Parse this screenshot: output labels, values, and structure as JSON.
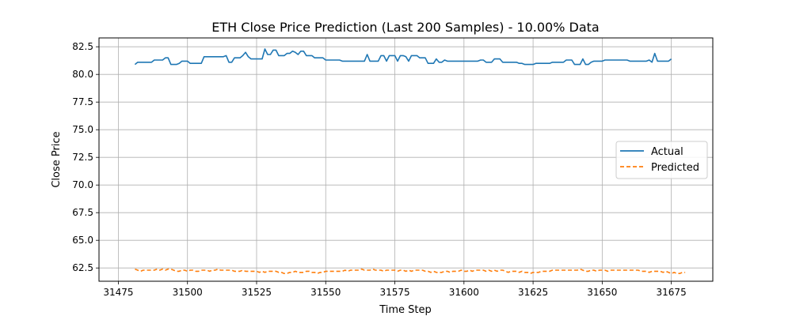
{
  "chart_data": {
    "type": "line",
    "title": "ETH Close Price Prediction (Last 200 Samples) - 10.00% Data",
    "xlabel": "Time Step",
    "ylabel": "Close Price",
    "xlim": [
      31468,
      31690
    ],
    "ylim": [
      61.3,
      83.3
    ],
    "x_ticks": [
      31475,
      31500,
      31525,
      31550,
      31575,
      31600,
      31625,
      31650,
      31675
    ],
    "y_ticks": [
      62.5,
      65.0,
      67.5,
      70.0,
      72.5,
      75.0,
      77.5,
      80.0,
      82.5
    ],
    "grid": true,
    "legend_position": "center-right",
    "x_start": 31481,
    "series": [
      {
        "name": "Actual",
        "color": "#1f77b4",
        "style": "solid",
        "values": [
          80.9,
          81.1,
          81.1,
          81.1,
          81.1,
          81.1,
          81.1,
          81.3,
          81.3,
          81.3,
          81.3,
          81.5,
          81.5,
          80.9,
          80.9,
          80.9,
          81.0,
          81.2,
          81.2,
          81.2,
          81.0,
          81.0,
          81.0,
          81.0,
          81.0,
          81.6,
          81.6,
          81.6,
          81.6,
          81.6,
          81.6,
          81.6,
          81.6,
          81.7,
          81.1,
          81.1,
          81.5,
          81.5,
          81.5,
          81.7,
          82.0,
          81.6,
          81.4,
          81.4,
          81.4,
          81.4,
          81.4,
          82.3,
          81.8,
          81.8,
          82.2,
          82.2,
          81.7,
          81.7,
          81.7,
          81.9,
          81.9,
          82.1,
          82.0,
          81.8,
          82.1,
          82.1,
          81.7,
          81.7,
          81.7,
          81.5,
          81.5,
          81.5,
          81.5,
          81.3,
          81.3,
          81.3,
          81.3,
          81.3,
          81.3,
          81.2,
          81.2,
          81.2,
          81.2,
          81.2,
          81.2,
          81.2,
          81.2,
          81.2,
          81.8,
          81.2,
          81.2,
          81.2,
          81.2,
          81.7,
          81.7,
          81.2,
          81.7,
          81.7,
          81.7,
          81.2,
          81.7,
          81.7,
          81.6,
          81.2,
          81.7,
          81.7,
          81.7,
          81.5,
          81.5,
          81.5,
          81.0,
          81.0,
          81.0,
          81.4,
          81.1,
          81.1,
          81.3,
          81.2,
          81.2,
          81.2,
          81.2,
          81.2,
          81.2,
          81.2,
          81.2,
          81.2,
          81.2,
          81.2,
          81.2,
          81.3,
          81.3,
          81.1,
          81.1,
          81.1,
          81.4,
          81.4,
          81.4,
          81.1,
          81.1,
          81.1,
          81.1,
          81.1,
          81.1,
          81.0,
          81.0,
          80.9,
          80.9,
          80.9,
          80.9,
          81.0,
          81.0,
          81.0,
          81.0,
          81.0,
          81.0,
          81.1,
          81.1,
          81.1,
          81.1,
          81.1,
          81.3,
          81.3,
          81.3,
          80.9,
          80.9,
          80.9,
          81.4,
          80.9,
          80.9,
          81.1,
          81.2,
          81.2,
          81.2,
          81.2,
          81.3,
          81.3,
          81.3,
          81.3,
          81.3,
          81.3,
          81.3,
          81.3,
          81.3,
          81.2,
          81.2,
          81.2,
          81.2,
          81.2,
          81.2,
          81.2,
          81.3,
          81.1,
          81.9,
          81.2,
          81.2,
          81.2,
          81.2,
          81.2,
          81.4
        ]
      },
      {
        "name": "Predicted",
        "color": "#ff7f0e",
        "style": "dashed",
        "values": [
          62.4,
          62.3,
          62.2,
          62.3,
          62.3,
          62.3,
          62.3,
          62.3,
          62.4,
          62.3,
          62.4,
          62.3,
          62.4,
          62.4,
          62.3,
          62.2,
          62.2,
          62.3,
          62.3,
          62.2,
          62.3,
          62.3,
          62.2,
          62.2,
          62.3,
          62.3,
          62.3,
          62.2,
          62.3,
          62.3,
          62.4,
          62.3,
          62.3,
          62.3,
          62.3,
          62.3,
          62.2,
          62.2,
          62.2,
          62.3,
          62.2,
          62.2,
          62.2,
          62.2,
          62.2,
          62.1,
          62.2,
          62.1,
          62.2,
          62.2,
          62.2,
          62.2,
          62.1,
          62.1,
          62.0,
          62.0,
          62.1,
          62.1,
          62.2,
          62.1,
          62.1,
          62.1,
          62.2,
          62.2,
          62.1,
          62.1,
          62.0,
          62.1,
          62.1,
          62.2,
          62.2,
          62.2,
          62.2,
          62.2,
          62.2,
          62.2,
          62.3,
          62.2,
          62.3,
          62.3,
          62.3,
          62.3,
          62.4,
          62.3,
          62.3,
          62.3,
          62.4,
          62.3,
          62.3,
          62.3,
          62.2,
          62.3,
          62.3,
          62.3,
          62.3,
          62.2,
          62.3,
          62.3,
          62.2,
          62.3,
          62.2,
          62.3,
          62.3,
          62.3,
          62.3,
          62.2,
          62.2,
          62.1,
          62.2,
          62.1,
          62.1,
          62.1,
          62.2,
          62.2,
          62.1,
          62.2,
          62.2,
          62.2,
          62.3,
          62.2,
          62.2,
          62.3,
          62.2,
          62.3,
          62.3,
          62.3,
          62.3,
          62.2,
          62.3,
          62.2,
          62.3,
          62.2,
          62.3,
          62.3,
          62.2,
          62.1,
          62.2,
          62.2,
          62.2,
          62.1,
          62.2,
          62.1,
          62.1,
          62.0,
          62.1,
          62.1,
          62.1,
          62.2,
          62.2,
          62.2,
          62.2,
          62.3,
          62.3,
          62.3,
          62.3,
          62.3,
          62.3,
          62.3,
          62.3,
          62.3,
          62.3,
          62.4,
          62.3,
          62.2,
          62.2,
          62.3,
          62.3,
          62.2,
          62.3,
          62.3,
          62.3,
          62.2,
          62.3,
          62.3,
          62.3,
          62.3,
          62.3,
          62.3,
          62.3,
          62.3,
          62.3,
          62.3,
          62.3,
          62.2,
          62.2,
          62.2,
          62.1,
          62.2,
          62.2,
          62.2,
          62.2,
          62.1,
          62.2,
          62.1,
          62.0,
          62.1,
          62.0,
          62.0,
          62.1,
          62.1
        ]
      }
    ]
  }
}
